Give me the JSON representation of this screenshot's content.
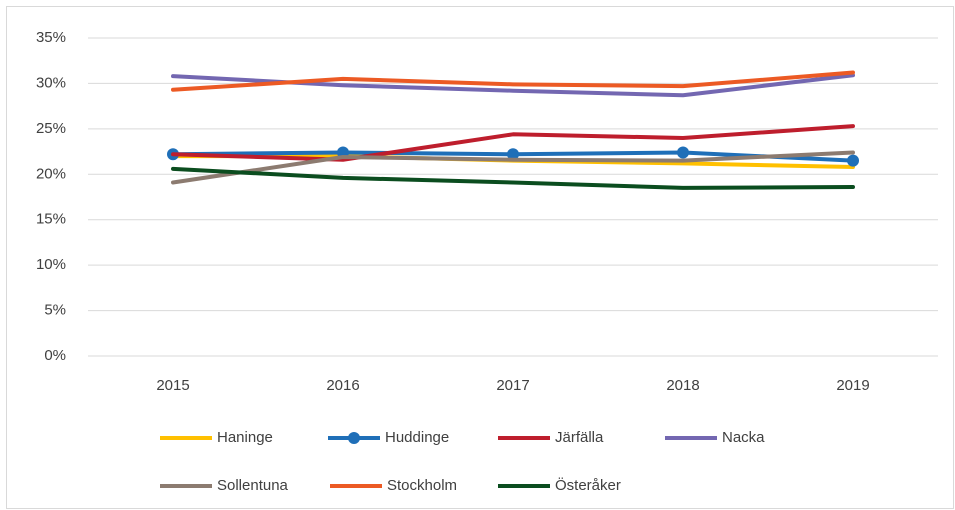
{
  "chart_data": {
    "type": "line",
    "categories": [
      "2015",
      "2016",
      "2017",
      "2018",
      "2019"
    ],
    "series": [
      {
        "name": "Haninge",
        "color": "#ffc000",
        "values": [
          22,
          22,
          21.5,
          21.2,
          20.8
        ]
      },
      {
        "name": "Huddinge",
        "color": "#1f6fb8",
        "markers": true,
        "values": [
          22.2,
          22.4,
          22.2,
          22.4,
          21.5
        ]
      },
      {
        "name": "Järfälla",
        "color": "#be1e2d",
        "values": [
          22.2,
          21.6,
          24.4,
          24.0,
          25.3
        ]
      },
      {
        "name": "Nacka",
        "color": "#7367b1",
        "values": [
          30.8,
          29.8,
          29.2,
          28.7,
          30.9
        ]
      },
      {
        "name": "Sollentuna",
        "color": "#8c7b70",
        "values": [
          19.1,
          21.9,
          21.6,
          21.5,
          22.4
        ]
      },
      {
        "name": "Stockholm",
        "color": "#ec5a24",
        "values": [
          29.3,
          30.5,
          29.9,
          29.7,
          31.2
        ]
      },
      {
        "name": "Österåker",
        "color": "#0b4d1f",
        "values": [
          20.6,
          19.6,
          19.1,
          18.5,
          18.6
        ]
      }
    ],
    "ylim": [
      0,
      35
    ],
    "yticks": [
      {
        "value": 0,
        "label": "0%"
      },
      {
        "value": 5,
        "label": "5%"
      },
      {
        "value": 10,
        "label": "10%"
      },
      {
        "value": 15,
        "label": "15%"
      },
      {
        "value": 20,
        "label": "20%"
      },
      {
        "value": 25,
        "label": "25%"
      },
      {
        "value": 30,
        "label": "30%"
      },
      {
        "value": 35,
        "label": "35%"
      }
    ],
    "grid": true,
    "legend": "bottom"
  }
}
